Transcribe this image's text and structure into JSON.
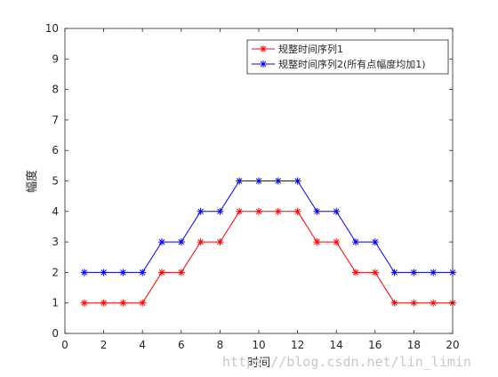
{
  "chart_data": {
    "type": "line",
    "title": "",
    "xlabel": "时间",
    "ylabel": "幅度",
    "xlim": [
      0,
      20
    ],
    "ylim": [
      0,
      10
    ],
    "xticks": [
      0,
      2,
      4,
      6,
      8,
      10,
      12,
      14,
      16,
      18,
      20
    ],
    "yticks": [
      0,
      1,
      2,
      3,
      4,
      5,
      6,
      7,
      8,
      9,
      10
    ],
    "grid": false,
    "legend_position": "top-right",
    "x": [
      1,
      2,
      3,
      4,
      5,
      6,
      7,
      8,
      9,
      10,
      11,
      12,
      13,
      14,
      15,
      16,
      17,
      18,
      19,
      20
    ],
    "series": [
      {
        "name": "规整时间序列1",
        "color": "#ff0000",
        "marker": "asterisk",
        "values": [
          1,
          1,
          1,
          1,
          2,
          2,
          3,
          3,
          4,
          4,
          4,
          4,
          3,
          3,
          2,
          2,
          1,
          1,
          1,
          1
        ]
      },
      {
        "name": "规整时间序列2(所有点幅度均加1)",
        "color": "#0000ff",
        "marker": "asterisk",
        "values": [
          2,
          2,
          2,
          2,
          3,
          3,
          4,
          4,
          5,
          5,
          5,
          5,
          4,
          4,
          3,
          3,
          2,
          2,
          2,
          2
        ]
      }
    ]
  },
  "watermark": "https://blog.csdn.net/lin_limin"
}
